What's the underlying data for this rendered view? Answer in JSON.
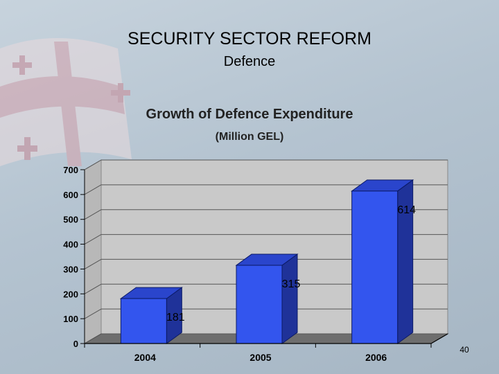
{
  "slide": {
    "title": "SECURITY SECTOR REFORM",
    "subtitle": "Defence",
    "page_number": "40"
  },
  "chart_data": {
    "type": "bar",
    "title": "Growth of Defence Expenditure",
    "subtitle": "(Million GEL)",
    "categories": [
      "2004",
      "2005",
      "2006"
    ],
    "values": [
      181,
      315,
      614
    ],
    "data_labels": [
      "181",
      "315",
      "614"
    ],
    "yticks": [
      0,
      100,
      200,
      300,
      400,
      500,
      600,
      700
    ],
    "ylim": [
      0,
      700
    ],
    "grid": true,
    "legend": "none",
    "bar_color": "#3355ee",
    "bar_side_color": "#1f3299",
    "plot_wall_color": "#c9c9c9",
    "floor_color": "#6e6e6e"
  }
}
